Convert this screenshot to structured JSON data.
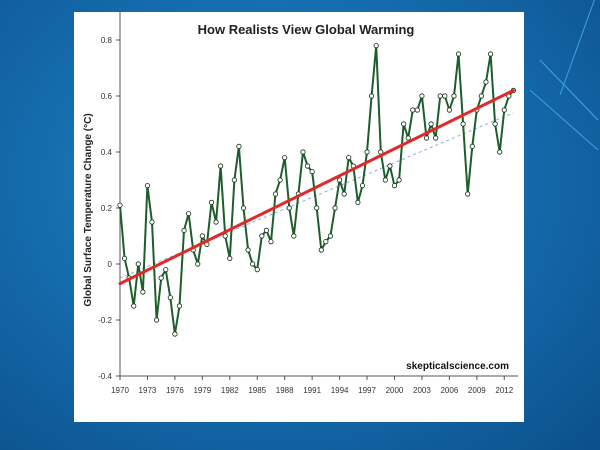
{
  "slide": {
    "watermark": "skepticalscience.com"
  },
  "colors": {
    "background": "#1a7fc1",
    "data_line": "#1d5e2a",
    "markers": "#ffffff",
    "trend": "#e02a2a",
    "trend_faint": "#8fa8e6"
  },
  "chart_data": {
    "type": "line",
    "title": "How Realists View Global Warming",
    "xlabel": "",
    "ylabel": "Global Surface Temperature Change (°C)",
    "xlim": [
      1970,
      2013.5
    ],
    "ylim": [
      -0.4,
      0.9
    ],
    "x_ticks": [
      "1970",
      "1973",
      "1976",
      "1979",
      "1982",
      "1985",
      "1988",
      "1991",
      "1994",
      "1997",
      "2000",
      "2003",
      "2006",
      "2009",
      "2012"
    ],
    "y_ticks": [
      "-0.4",
      "-0.2",
      "0",
      "0.2",
      "0.4",
      "0.6",
      "0.8"
    ],
    "grid": false,
    "series": [
      {
        "type": "line",
        "x": [
          1970.0,
          1970.5,
          1971.0,
          1971.5,
          1972.0,
          1972.5,
          1973.0,
          1973.5,
          1974.0,
          1974.5,
          1975.0,
          1975.5,
          1976.0,
          1976.5,
          1977.0,
          1977.5,
          1978.0,
          1978.5,
          1979.0,
          1979.5,
          1980.0,
          1980.5,
          1981.0,
          1981.5,
          1982.0,
          1982.5,
          1983.0,
          1983.5,
          1984.0,
          1984.5,
          1985.0,
          1985.5,
          1986.0,
          1986.5,
          1987.0,
          1987.5,
          1988.0,
          1988.5,
          1989.0,
          1989.5,
          1990.0,
          1990.5,
          1991.0,
          1991.5,
          1992.0,
          1992.5,
          1993.0,
          1993.5,
          1994.0,
          1994.5,
          1995.0,
          1995.5,
          1996.0,
          1996.5,
          1997.0,
          1997.5,
          1998.0,
          1998.5,
          1999.0,
          1999.5,
          2000.0,
          2000.5,
          2001.0,
          2001.5,
          2002.0,
          2002.5,
          2003.0,
          2003.5,
          2004.0,
          2004.5,
          2005.0,
          2005.5,
          2006.0,
          2006.5,
          2007.0,
          2007.5,
          2008.0,
          2008.5,
          2009.0,
          2009.5,
          2010.0,
          2010.5,
          2011.0,
          2011.5,
          2012.0,
          2012.5,
          2013.0
        ],
        "values": [
          0.21,
          0.02,
          -0.05,
          -0.15,
          0.0,
          -0.1,
          0.28,
          0.15,
          -0.2,
          -0.05,
          -0.02,
          -0.12,
          -0.25,
          -0.15,
          0.12,
          0.18,
          0.05,
          0.0,
          0.1,
          0.07,
          0.22,
          0.15,
          0.35,
          0.1,
          0.02,
          0.3,
          0.42,
          0.2,
          0.05,
          0.0,
          -0.02,
          0.1,
          0.12,
          0.08,
          0.25,
          0.3,
          0.38,
          0.2,
          0.1,
          0.25,
          0.4,
          0.35,
          0.33,
          0.2,
          0.05,
          0.08,
          0.1,
          0.2,
          0.3,
          0.25,
          0.38,
          0.35,
          0.22,
          0.28,
          0.4,
          0.6,
          0.78,
          0.4,
          0.3,
          0.35,
          0.28,
          0.3,
          0.5,
          0.45,
          0.55,
          0.55,
          0.6,
          0.45,
          0.5,
          0.45,
          0.6,
          0.6,
          0.55,
          0.6,
          0.75,
          0.5,
          0.25,
          0.42,
          0.55,
          0.6,
          0.65,
          0.75,
          0.5,
          0.4,
          0.55,
          0.6,
          0.62
        ]
      },
      {
        "type": "trend",
        "x": [
          1970,
          2013
        ],
        "values": [
          -0.07,
          0.62
        ]
      }
    ]
  }
}
